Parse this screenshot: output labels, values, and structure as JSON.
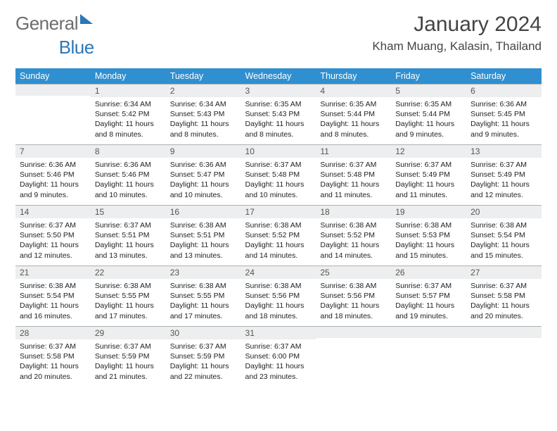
{
  "brand": {
    "part1": "General",
    "part2": "Blue"
  },
  "title": "January 2024",
  "location": "Kham Muang, Kalasin, Thailand",
  "colors": {
    "header_bg": "#2f8fd0",
    "header_text": "#ffffff",
    "daynum_bg": "#eceeef",
    "border": "#b0b0b0",
    "brand_gray": "#6d6d6d",
    "brand_blue": "#2b78b8"
  },
  "weekdays": [
    "Sunday",
    "Monday",
    "Tuesday",
    "Wednesday",
    "Thursday",
    "Friday",
    "Saturday"
  ],
  "weeks": [
    [
      {
        "day": "",
        "sunrise": "",
        "sunset": "",
        "daylight": ""
      },
      {
        "day": "1",
        "sunrise": "Sunrise: 6:34 AM",
        "sunset": "Sunset: 5:42 PM",
        "daylight": "Daylight: 11 hours and 8 minutes."
      },
      {
        "day": "2",
        "sunrise": "Sunrise: 6:34 AM",
        "sunset": "Sunset: 5:43 PM",
        "daylight": "Daylight: 11 hours and 8 minutes."
      },
      {
        "day": "3",
        "sunrise": "Sunrise: 6:35 AM",
        "sunset": "Sunset: 5:43 PM",
        "daylight": "Daylight: 11 hours and 8 minutes."
      },
      {
        "day": "4",
        "sunrise": "Sunrise: 6:35 AM",
        "sunset": "Sunset: 5:44 PM",
        "daylight": "Daylight: 11 hours and 8 minutes."
      },
      {
        "day": "5",
        "sunrise": "Sunrise: 6:35 AM",
        "sunset": "Sunset: 5:44 PM",
        "daylight": "Daylight: 11 hours and 9 minutes."
      },
      {
        "day": "6",
        "sunrise": "Sunrise: 6:36 AM",
        "sunset": "Sunset: 5:45 PM",
        "daylight": "Daylight: 11 hours and 9 minutes."
      }
    ],
    [
      {
        "day": "7",
        "sunrise": "Sunrise: 6:36 AM",
        "sunset": "Sunset: 5:46 PM",
        "daylight": "Daylight: 11 hours and 9 minutes."
      },
      {
        "day": "8",
        "sunrise": "Sunrise: 6:36 AM",
        "sunset": "Sunset: 5:46 PM",
        "daylight": "Daylight: 11 hours and 10 minutes."
      },
      {
        "day": "9",
        "sunrise": "Sunrise: 6:36 AM",
        "sunset": "Sunset: 5:47 PM",
        "daylight": "Daylight: 11 hours and 10 minutes."
      },
      {
        "day": "10",
        "sunrise": "Sunrise: 6:37 AM",
        "sunset": "Sunset: 5:48 PM",
        "daylight": "Daylight: 11 hours and 10 minutes."
      },
      {
        "day": "11",
        "sunrise": "Sunrise: 6:37 AM",
        "sunset": "Sunset: 5:48 PM",
        "daylight": "Daylight: 11 hours and 11 minutes."
      },
      {
        "day": "12",
        "sunrise": "Sunrise: 6:37 AM",
        "sunset": "Sunset: 5:49 PM",
        "daylight": "Daylight: 11 hours and 11 minutes."
      },
      {
        "day": "13",
        "sunrise": "Sunrise: 6:37 AM",
        "sunset": "Sunset: 5:49 PM",
        "daylight": "Daylight: 11 hours and 12 minutes."
      }
    ],
    [
      {
        "day": "14",
        "sunrise": "Sunrise: 6:37 AM",
        "sunset": "Sunset: 5:50 PM",
        "daylight": "Daylight: 11 hours and 12 minutes."
      },
      {
        "day": "15",
        "sunrise": "Sunrise: 6:37 AM",
        "sunset": "Sunset: 5:51 PM",
        "daylight": "Daylight: 11 hours and 13 minutes."
      },
      {
        "day": "16",
        "sunrise": "Sunrise: 6:38 AM",
        "sunset": "Sunset: 5:51 PM",
        "daylight": "Daylight: 11 hours and 13 minutes."
      },
      {
        "day": "17",
        "sunrise": "Sunrise: 6:38 AM",
        "sunset": "Sunset: 5:52 PM",
        "daylight": "Daylight: 11 hours and 14 minutes."
      },
      {
        "day": "18",
        "sunrise": "Sunrise: 6:38 AM",
        "sunset": "Sunset: 5:52 PM",
        "daylight": "Daylight: 11 hours and 14 minutes."
      },
      {
        "day": "19",
        "sunrise": "Sunrise: 6:38 AM",
        "sunset": "Sunset: 5:53 PM",
        "daylight": "Daylight: 11 hours and 15 minutes."
      },
      {
        "day": "20",
        "sunrise": "Sunrise: 6:38 AM",
        "sunset": "Sunset: 5:54 PM",
        "daylight": "Daylight: 11 hours and 15 minutes."
      }
    ],
    [
      {
        "day": "21",
        "sunrise": "Sunrise: 6:38 AM",
        "sunset": "Sunset: 5:54 PM",
        "daylight": "Daylight: 11 hours and 16 minutes."
      },
      {
        "day": "22",
        "sunrise": "Sunrise: 6:38 AM",
        "sunset": "Sunset: 5:55 PM",
        "daylight": "Daylight: 11 hours and 17 minutes."
      },
      {
        "day": "23",
        "sunrise": "Sunrise: 6:38 AM",
        "sunset": "Sunset: 5:55 PM",
        "daylight": "Daylight: 11 hours and 17 minutes."
      },
      {
        "day": "24",
        "sunrise": "Sunrise: 6:38 AM",
        "sunset": "Sunset: 5:56 PM",
        "daylight": "Daylight: 11 hours and 18 minutes."
      },
      {
        "day": "25",
        "sunrise": "Sunrise: 6:38 AM",
        "sunset": "Sunset: 5:56 PM",
        "daylight": "Daylight: 11 hours and 18 minutes."
      },
      {
        "day": "26",
        "sunrise": "Sunrise: 6:37 AM",
        "sunset": "Sunset: 5:57 PM",
        "daylight": "Daylight: 11 hours and 19 minutes."
      },
      {
        "day": "27",
        "sunrise": "Sunrise: 6:37 AM",
        "sunset": "Sunset: 5:58 PM",
        "daylight": "Daylight: 11 hours and 20 minutes."
      }
    ],
    [
      {
        "day": "28",
        "sunrise": "Sunrise: 6:37 AM",
        "sunset": "Sunset: 5:58 PM",
        "daylight": "Daylight: 11 hours and 20 minutes."
      },
      {
        "day": "29",
        "sunrise": "Sunrise: 6:37 AM",
        "sunset": "Sunset: 5:59 PM",
        "daylight": "Daylight: 11 hours and 21 minutes."
      },
      {
        "day": "30",
        "sunrise": "Sunrise: 6:37 AM",
        "sunset": "Sunset: 5:59 PM",
        "daylight": "Daylight: 11 hours and 22 minutes."
      },
      {
        "day": "31",
        "sunrise": "Sunrise: 6:37 AM",
        "sunset": "Sunset: 6:00 PM",
        "daylight": "Daylight: 11 hours and 23 minutes."
      },
      {
        "day": "",
        "sunrise": "",
        "sunset": "",
        "daylight": ""
      },
      {
        "day": "",
        "sunrise": "",
        "sunset": "",
        "daylight": ""
      },
      {
        "day": "",
        "sunrise": "",
        "sunset": "",
        "daylight": ""
      }
    ]
  ]
}
